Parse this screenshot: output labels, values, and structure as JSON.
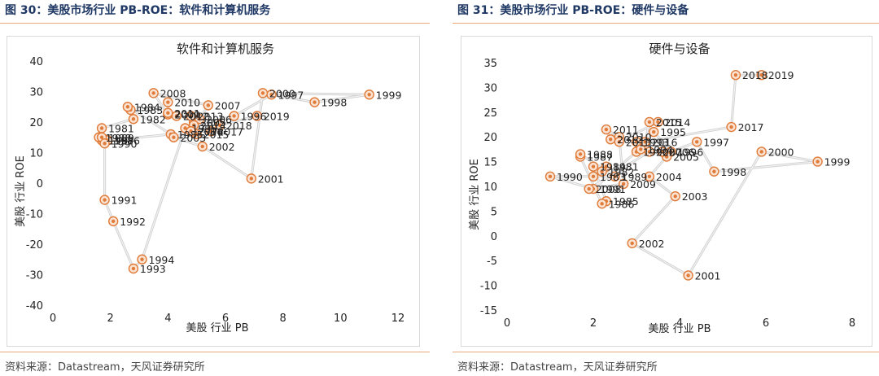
{
  "panels": [
    {
      "figure_title": "图 30：美股市场行业 PB-ROE：软件和计算机服务",
      "source": "资料来源：Datastream，天风证券研究所",
      "accent_color": "#e07b39"
    },
    {
      "figure_title": "图 31：美股市场行业 PB-ROE：硬件与设备",
      "source": "资料来源：Datastream，天风证券研究所",
      "accent_color": "#e07b39"
    }
  ],
  "chart_data": [
    {
      "type": "scatter",
      "title": "软件和计算机服务",
      "xlabel": "美股 行业 PB",
      "ylabel": "美股 行业 ROE",
      "xlim": [
        0,
        12
      ],
      "ylim": [
        -40,
        40
      ],
      "xticks": [
        "0",
        "2",
        "4",
        "6",
        "8",
        "10",
        "12"
      ],
      "yticks": [
        "40",
        "30",
        "20",
        "10",
        "0",
        "-10",
        "-20",
        "-30",
        "-40"
      ],
      "grid": false,
      "connected": true,
      "points": [
        {
          "label": "1981",
          "x": 1.7,
          "y": 18
        },
        {
          "label": "1982",
          "x": 2.8,
          "y": 21
        },
        {
          "label": "1983",
          "x": 2.7,
          "y": 24
        },
        {
          "label": "1984",
          "x": 2.6,
          "y": 25
        },
        {
          "label": "1985",
          "x": 4.1,
          "y": 16
        },
        {
          "label": "1986",
          "x": 1.9,
          "y": 14
        },
        {
          "label": "1987",
          "x": 1.7,
          "y": 14
        },
        {
          "label": "1988",
          "x": 1.6,
          "y": 15
        },
        {
          "label": "1989",
          "x": 1.7,
          "y": 15
        },
        {
          "label": "1990",
          "x": 1.8,
          "y": 13
        },
        {
          "label": "1991",
          "x": 1.8,
          "y": -5.5
        },
        {
          "label": "1992",
          "x": 2.1,
          "y": -12.5
        },
        {
          "label": "1993",
          "x": 2.8,
          "y": -28
        },
        {
          "label": "1994",
          "x": 3.1,
          "y": -25
        },
        {
          "label": "1995",
          "x": 4.6,
          "y": 18
        },
        {
          "label": "1996",
          "x": 6.3,
          "y": 22
        },
        {
          "label": "1997",
          "x": 7.6,
          "y": 29
        },
        {
          "label": "1998",
          "x": 9.1,
          "y": 26.5
        },
        {
          "label": "1999",
          "x": 11.0,
          "y": 29
        },
        {
          "label": "2000",
          "x": 7.3,
          "y": 29.5
        },
        {
          "label": "2001",
          "x": 6.9,
          "y": 1.5
        },
        {
          "label": "2002",
          "x": 5.2,
          "y": 12
        },
        {
          "label": "2003",
          "x": 4.2,
          "y": 15
        },
        {
          "label": "2004",
          "x": 4.8,
          "y": 17
        },
        {
          "label": "2005",
          "x": 4.9,
          "y": 20
        },
        {
          "label": "2006",
          "x": 5.1,
          "y": 21
        },
        {
          "label": "2007",
          "x": 5.4,
          "y": 25.5
        },
        {
          "label": "2008",
          "x": 3.5,
          "y": 29.5
        },
        {
          "label": "2009",
          "x": 4.0,
          "y": 22.5
        },
        {
          "label": "2010",
          "x": 4.0,
          "y": 26.5
        },
        {
          "label": "2011",
          "x": 4.0,
          "y": 23
        },
        {
          "label": "2012",
          "x": 4.3,
          "y": 22
        },
        {
          "label": "2013",
          "x": 4.8,
          "y": 22
        },
        {
          "label": "2014",
          "x": 4.9,
          "y": 19
        },
        {
          "label": "2015",
          "x": 5.0,
          "y": 16
        },
        {
          "label": "2016",
          "x": 4.8,
          "y": 17
        },
        {
          "label": "2017",
          "x": 5.5,
          "y": 17
        },
        {
          "label": "2018",
          "x": 5.8,
          "y": 19
        },
        {
          "label": "2019",
          "x": 7.1,
          "y": 22
        }
      ]
    },
    {
      "type": "scatter",
      "title": "硬件与设备",
      "xlabel": "美股 行业 PB",
      "ylabel": "美股 行业 ROE",
      "xlim": [
        0,
        8
      ],
      "ylim": [
        -15,
        35
      ],
      "xticks": [
        "0",
        "2",
        "4",
        "6",
        "8"
      ],
      "yticks": [
        "35",
        "30",
        "25",
        "20",
        "15",
        "10",
        "5",
        "0",
        "-5",
        "-10",
        "-15"
      ],
      "grid": false,
      "connected": true,
      "points": [
        {
          "label": "1981",
          "x": 2.3,
          "y": 14
        },
        {
          "label": "1982",
          "x": 2.2,
          "y": 13
        },
        {
          "label": "1983",
          "x": 2.0,
          "y": 12
        },
        {
          "label": "1984",
          "x": 2.0,
          "y": 14
        },
        {
          "label": "1985",
          "x": 2.3,
          "y": 7
        },
        {
          "label": "1986",
          "x": 2.2,
          "y": 6.5
        },
        {
          "label": "1987",
          "x": 1.7,
          "y": 16
        },
        {
          "label": "1988",
          "x": 1.7,
          "y": 16.5
        },
        {
          "label": "1989",
          "x": 2.5,
          "y": 12
        },
        {
          "label": "1990",
          "x": 1.0,
          "y": 12
        },
        {
          "label": "1991",
          "x": 2.0,
          "y": 9.5
        },
        {
          "label": "1992",
          "x": 3.0,
          "y": 17
        },
        {
          "label": "1993",
          "x": 3.0,
          "y": 19
        },
        {
          "label": "1994",
          "x": 3.1,
          "y": 17.5
        },
        {
          "label": "1995",
          "x": 3.4,
          "y": 21
        },
        {
          "label": "1996",
          "x": 3.8,
          "y": 17
        },
        {
          "label": "1997",
          "x": 4.4,
          "y": 19
        },
        {
          "label": "1998",
          "x": 4.8,
          "y": 13
        },
        {
          "label": "1999",
          "x": 7.2,
          "y": 15
        },
        {
          "label": "2000",
          "x": 5.9,
          "y": 17
        },
        {
          "label": "2001",
          "x": 4.2,
          "y": -8
        },
        {
          "label": "2002",
          "x": 2.9,
          "y": -1.5
        },
        {
          "label": "2003",
          "x": 3.9,
          "y": 8
        },
        {
          "label": "2004",
          "x": 3.3,
          "y": 12
        },
        {
          "label": "2005",
          "x": 3.7,
          "y": 16
        },
        {
          "label": "2006",
          "x": 3.6,
          "y": 17
        },
        {
          "label": "2007",
          "x": 3.3,
          "y": 17
        },
        {
          "label": "2008",
          "x": 1.9,
          "y": 9.5
        },
        {
          "label": "2009",
          "x": 2.7,
          "y": 10.5
        },
        {
          "label": "2010",
          "x": 2.6,
          "y": 20
        },
        {
          "label": "2011",
          "x": 2.3,
          "y": 21.5
        },
        {
          "label": "2012",
          "x": 2.4,
          "y": 19.5
        },
        {
          "label": "2013",
          "x": 2.6,
          "y": 19
        },
        {
          "label": "2014",
          "x": 3.5,
          "y": 23
        },
        {
          "label": "2015",
          "x": 3.3,
          "y": 23
        },
        {
          "label": "2016",
          "x": 3.2,
          "y": 19
        },
        {
          "label": "2017",
          "x": 5.2,
          "y": 22
        },
        {
          "label": "2018",
          "x": 5.3,
          "y": 32.5
        },
        {
          "label": "2019",
          "x": 5.9,
          "y": 32.5
        }
      ]
    }
  ]
}
